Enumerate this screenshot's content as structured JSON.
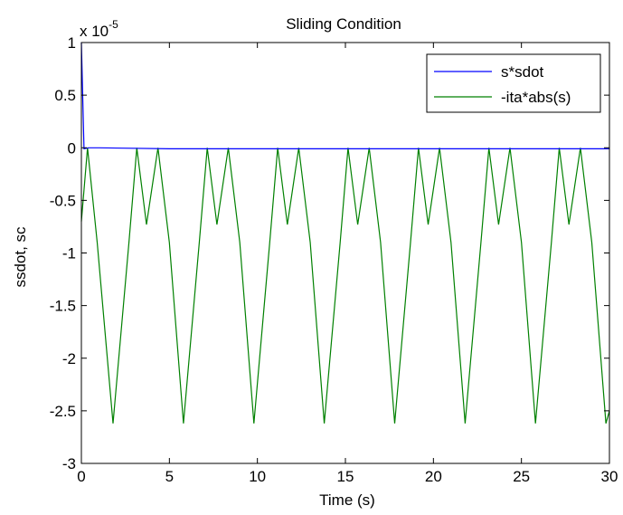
{
  "chart_data": {
    "type": "line",
    "title": "Sliding Condition",
    "xlabel": "Time (s)",
    "ylabel": "ssdot, sc",
    "exponent_base": "x 10",
    "exponent_power": "-5",
    "xlim": [
      0,
      30
    ],
    "ylim": [
      -3,
      1
    ],
    "ylim_scaled": [
      -3e-05,
      1e-05
    ],
    "xticks": [
      0,
      5,
      10,
      15,
      20,
      25,
      30
    ],
    "yticks": [
      -3,
      -2.5,
      -2,
      -1.5,
      -1,
      -0.5,
      0,
      0.5,
      1
    ],
    "grid": false,
    "legend_position": "top-right",
    "series": [
      {
        "name": "s*sdot",
        "color": "#0000ff",
        "x": [
          0,
          0.15,
          0.4,
          1,
          5,
          10,
          15,
          20,
          25,
          30
        ],
        "y": [
          1,
          -0.01,
          0,
          0,
          -0.01,
          -0.01,
          -0.01,
          -0.01,
          -0.01,
          -0.01
        ]
      },
      {
        "name": "-ita*abs(s)",
        "color": "#008000",
        "x": [
          0,
          0.35,
          0.9,
          1.8,
          2.7,
          3.15,
          3.7,
          4.35,
          5.0,
          5.8,
          6.7,
          7.15,
          7.7,
          8.35,
          9.0,
          9.8,
          10.7,
          11.15,
          11.7,
          12.35,
          13.0,
          13.8,
          14.7,
          15.15,
          15.7,
          16.35,
          17.0,
          17.8,
          18.7,
          19.15,
          19.7,
          20.35,
          21.0,
          21.8,
          22.7,
          23.15,
          23.7,
          24.35,
          25.0,
          25.8,
          26.7,
          27.15,
          27.7,
          28.35,
          29.0,
          29.8,
          30
        ],
        "y": [
          -0.7,
          0,
          -0.9,
          -2.62,
          -0.9,
          0,
          -0.73,
          0,
          -0.9,
          -2.62,
          -0.9,
          0,
          -0.73,
          0,
          -0.9,
          -2.62,
          -0.9,
          0,
          -0.73,
          0,
          -0.9,
          -2.62,
          -0.9,
          0,
          -0.73,
          0,
          -0.9,
          -2.62,
          -0.9,
          0,
          -0.73,
          0,
          -0.9,
          -2.62,
          -0.9,
          0,
          -0.73,
          0,
          -0.9,
          -2.62,
          -0.9,
          0,
          -0.73,
          0,
          -0.9,
          -2.62,
          -2.5
        ]
      }
    ]
  }
}
